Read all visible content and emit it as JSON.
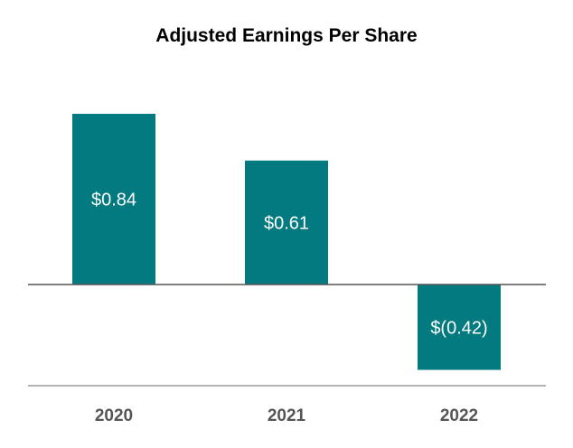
{
  "chart_data": {
    "type": "bar",
    "title": "Adjusted Earnings Per Share",
    "xlabel": "",
    "ylabel": "",
    "categories": [
      "2020",
      "2021",
      "2022"
    ],
    "values": [
      0.84,
      0.61,
      -0.42
    ],
    "data_labels": [
      "$0.84",
      "$0.61",
      "$(0.42)"
    ],
    "ylim": [
      -0.5,
      1.0
    ],
    "grid": false,
    "legend": "none",
    "colors": {
      "bar": "#027a80",
      "zero_line": "#555555",
      "baseline": "#9a9a9a",
      "tick_label": "#555555",
      "data_label": "#ffffff"
    }
  }
}
